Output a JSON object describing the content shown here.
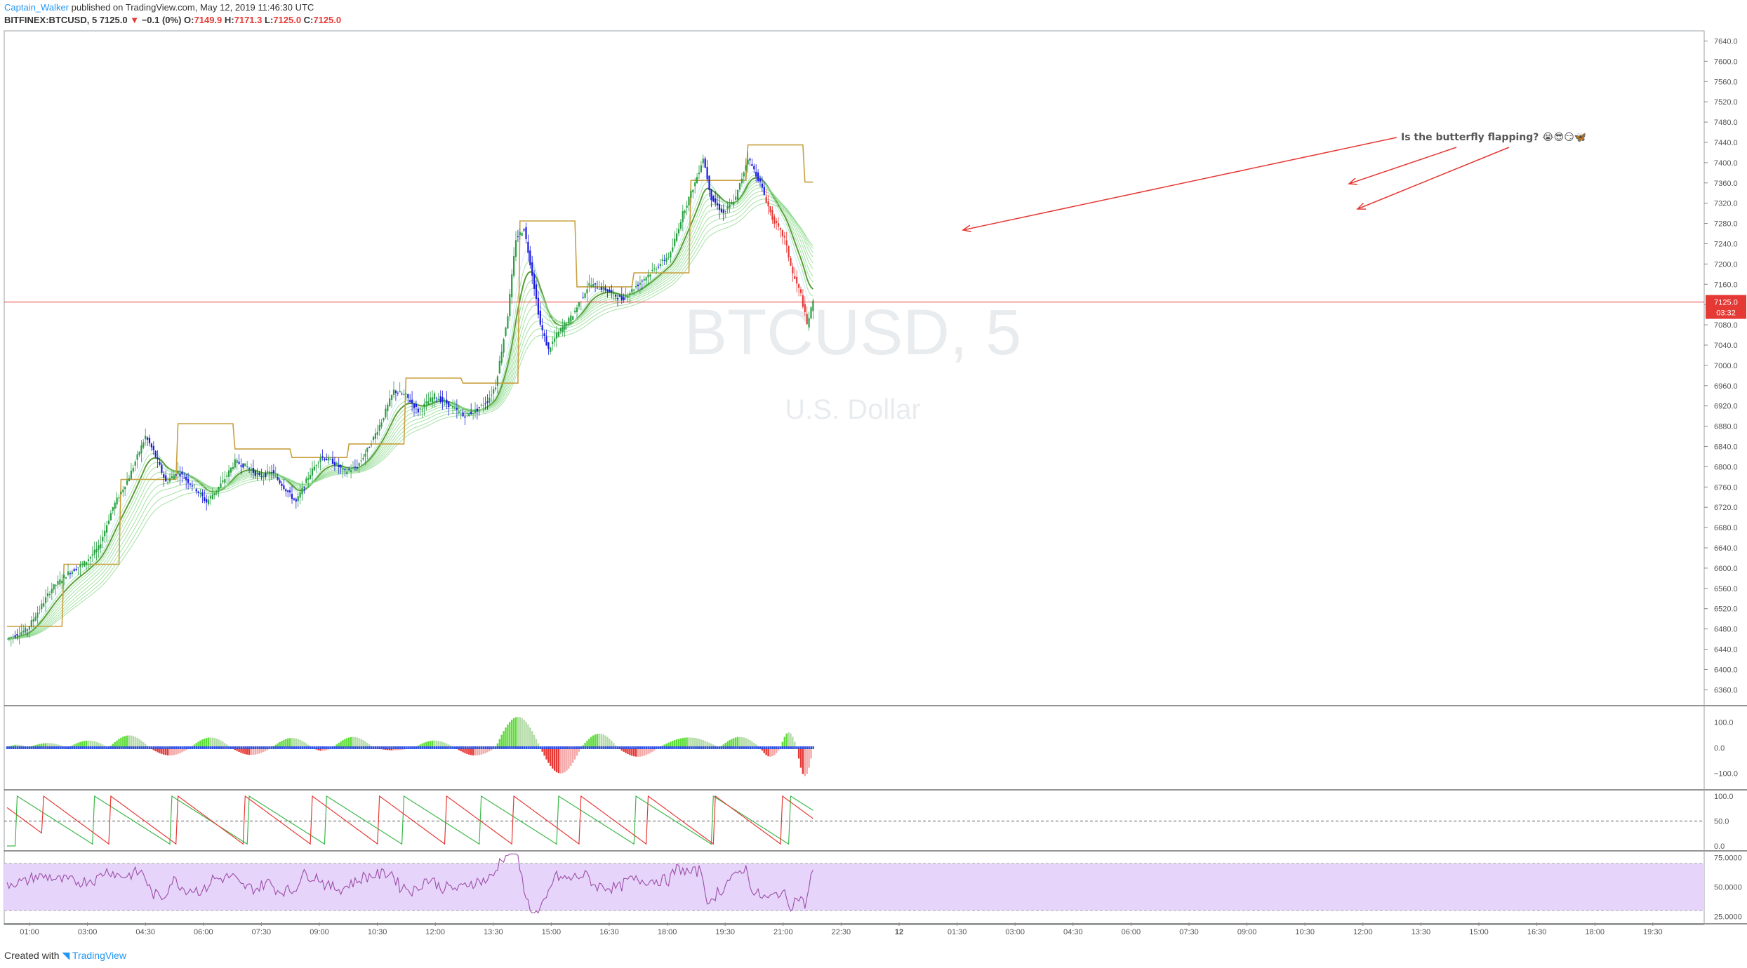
{
  "header": {
    "author": "Captain_Walker",
    "published_text": "published on TradingView.com, May 12, 2019 11:46:30 UTC",
    "symbol": "BITFINEX:BTCUSD, 5",
    "last": "7125.0",
    "arrow": "▼",
    "change": "−0.1 (0%)",
    "o_label": "O:",
    "o": "7149.9",
    "h_label": "H:",
    "h": "7171.3",
    "l_label": "L:",
    "l": "7125.0",
    "c_label": "C:",
    "c": "7125.0"
  },
  "watermark": {
    "symbol": "BTCUSD, 5",
    "currency": "U.S. Dollar"
  },
  "annotation": {
    "text": "Is the butterfly flapping? 😭😎😏🦋"
  },
  "price_badge": {
    "price": "7125.0",
    "countdown": "03:32",
    "color": "#e53935"
  },
  "footer": {
    "created_with": "Created with",
    "brand": "TradingView"
  },
  "colors": {
    "up": "#26a041",
    "down": "#1a1ae0",
    "down_red": "#e53935",
    "donchian": "#c8a040",
    "ema_fast": "#5a9e3a",
    "ribbon": "#8fd98f",
    "rsi_band": "#e6d4fa",
    "rsi_line": "#9c4fa8",
    "aroon_up": "#3cb84a",
    "aroon_down": "#e53935"
  },
  "chart_data": [
    {
      "type": "candlestick",
      "title": "BITFINEX:BTCUSD, 5",
      "y_ticks": [
        "7640.0",
        "7600.0",
        "7560.0",
        "7520.0",
        "7480.0",
        "7440.0",
        "7400.0",
        "7360.0",
        "7320.0",
        "7280.0",
        "7240.0",
        "7200.0",
        "7160.0",
        "7120.0",
        "7080.0",
        "7040.0",
        "7000.0",
        "6960.0",
        "6920.0",
        "6880.0",
        "6840.0",
        "6800.0",
        "6760.0",
        "6720.0",
        "6680.0",
        "6640.0",
        "6600.0",
        "6560.0",
        "6520.0",
        "6480.0",
        "6440.0",
        "6400.0",
        "6360.0"
      ],
      "ylim": [
        6330,
        7660
      ],
      "x_ticks": [
        "01:00",
        "03:00",
        "04:30",
        "06:00",
        "07:30",
        "09:00",
        "10:30",
        "12:00",
        "13:30",
        "15:00",
        "16:30",
        "18:00",
        "19:30",
        "21:00",
        "22:30",
        "12",
        "01:30",
        "03:00",
        "04:30",
        "06:00",
        "07:30",
        "09:00",
        "10:30",
        "12:00",
        "13:30",
        "15:00",
        "16:30",
        "18:00",
        "19:30"
      ],
      "close_path": [
        [
          0,
          6460
        ],
        [
          10,
          6480
        ],
        [
          22,
          6560
        ],
        [
          30,
          6590
        ],
        [
          38,
          6610
        ],
        [
          45,
          6640
        ],
        [
          52,
          6720
        ],
        [
          60,
          6780
        ],
        [
          68,
          6860
        ],
        [
          72,
          6830
        ],
        [
          78,
          6770
        ],
        [
          84,
          6790
        ],
        [
          92,
          6760
        ],
        [
          98,
          6730
        ],
        [
          106,
          6770
        ],
        [
          112,
          6810
        ],
        [
          118,
          6800
        ],
        [
          124,
          6780
        ],
        [
          130,
          6790
        ],
        [
          136,
          6760
        ],
        [
          142,
          6730
        ],
        [
          148,
          6780
        ],
        [
          154,
          6820
        ],
        [
          160,
          6810
        ],
        [
          166,
          6790
        ],
        [
          172,
          6800
        ],
        [
          178,
          6840
        ],
        [
          184,
          6890
        ],
        [
          190,
          6950
        ],
        [
          196,
          6940
        ],
        [
          202,
          6910
        ],
        [
          210,
          6940
        ],
        [
          218,
          6920
        ],
        [
          224,
          6900
        ],
        [
          230,
          6910
        ],
        [
          236,
          6930
        ],
        [
          240,
          6960
        ],
        [
          246,
          7100
        ],
        [
          250,
          7250
        ],
        [
          254,
          7270
        ],
        [
          258,
          7180
        ],
        [
          262,
          7080
        ],
        [
          266,
          7030
        ],
        [
          270,
          7060
        ],
        [
          278,
          7100
        ],
        [
          286,
          7160
        ],
        [
          294,
          7150
        ],
        [
          302,
          7130
        ],
        [
          310,
          7160
        ],
        [
          318,
          7190
        ],
        [
          326,
          7220
        ],
        [
          332,
          7300
        ],
        [
          338,
          7360
        ],
        [
          342,
          7410
        ],
        [
          346,
          7330
        ],
        [
          352,
          7300
        ],
        [
          358,
          7330
        ],
        [
          364,
          7410
        ],
        [
          370,
          7360
        ],
        [
          376,
          7290
        ],
        [
          382,
          7250
        ],
        [
          386,
          7180
        ],
        [
          390,
          7140
        ],
        [
          393,
          7080
        ],
        [
          396,
          7125
        ]
      ],
      "last_price": 7125.0
    },
    {
      "type": "histogram",
      "title": "Momentum histogram",
      "y_ticks": [
        "100.0",
        "0.0",
        "−100.0"
      ],
      "ylim": [
        -150,
        150
      ],
      "humps": [
        [
          0,
          10,
          12
        ],
        [
          10,
          30,
          18
        ],
        [
          30,
          50,
          28
        ],
        [
          50,
          70,
          48
        ],
        [
          70,
          90,
          -30
        ],
        [
          90,
          110,
          40
        ],
        [
          110,
          130,
          -28
        ],
        [
          130,
          150,
          38
        ],
        [
          150,
          160,
          -12
        ],
        [
          160,
          180,
          42
        ],
        [
          180,
          200,
          -10
        ],
        [
          200,
          220,
          28
        ],
        [
          220,
          240,
          -30
        ],
        [
          240,
          262,
          120
        ],
        [
          262,
          282,
          -100
        ],
        [
          282,
          300,
          55
        ],
        [
          300,
          320,
          -35
        ],
        [
          320,
          350,
          40
        ],
        [
          350,
          370,
          42
        ],
        [
          370,
          380,
          -35
        ],
        [
          380,
          388,
          60
        ],
        [
          388,
          396,
          -110
        ]
      ]
    },
    {
      "type": "line",
      "title": "Aroon",
      "y_ticks": [
        "100.0",
        "50.0",
        "0.0"
      ],
      "ylim": [
        0,
        100
      ]
    },
    {
      "type": "line",
      "title": "RSI",
      "y_ticks": [
        "75.0000",
        "50.0000",
        "25.0000"
      ],
      "ylim": [
        20,
        80
      ],
      "band": [
        30,
        70
      ]
    }
  ]
}
